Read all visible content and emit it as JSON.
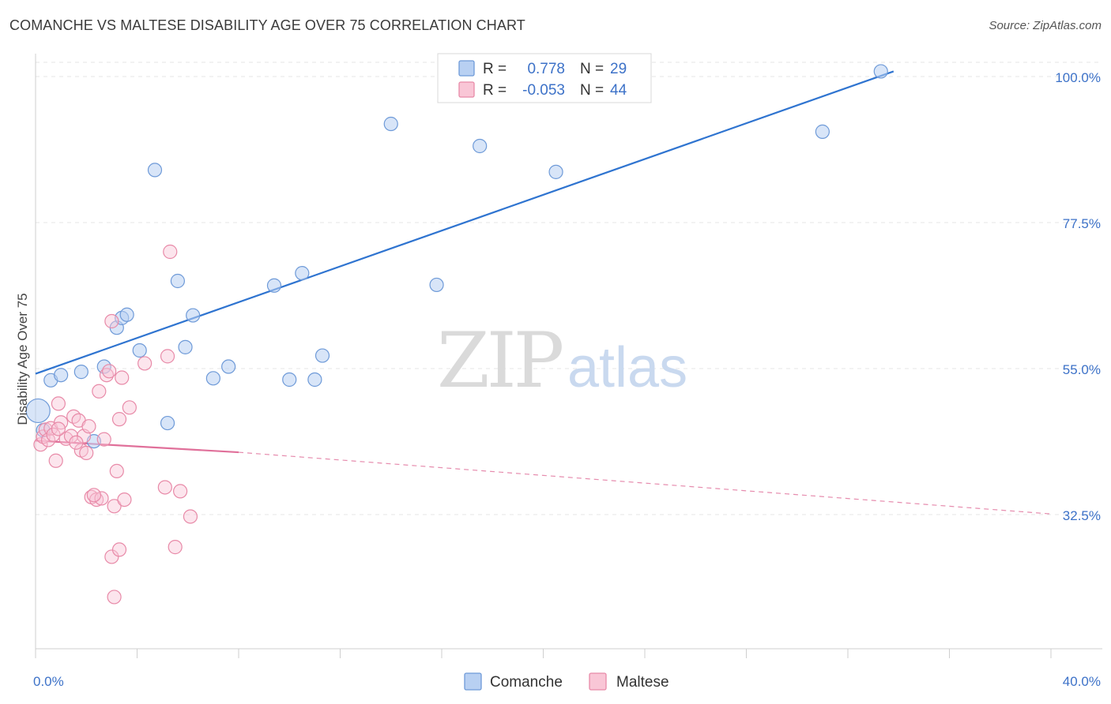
{
  "header": {
    "title": "COMANCHE VS MALTESE DISABILITY AGE OVER 75 CORRELATION CHART",
    "source": "Source: ZipAtlas.com"
  },
  "legend": {
    "r_label": "R =",
    "n_label": "N =",
    "rows": [
      {
        "name": "Comanche",
        "r": "0.778",
        "n": "29",
        "fill": "#b8d0f2",
        "stroke": "#6e9ad8"
      },
      {
        "name": "Maltese",
        "r": "-0.053",
        "n": "44",
        "fill": "#f9c6d6",
        "stroke": "#e88aa8"
      }
    ]
  },
  "watermark": {
    "zip": "ZIP",
    "atlas": "atlas"
  },
  "colors": {
    "comanche_line": "#2f74d0",
    "maltese_line": "#e0709a",
    "grid": "#e4e4e4",
    "tick_text": "#3d72c8"
  },
  "chart_data": {
    "type": "scatter",
    "title": "COMANCHE VS MALTESE DISABILITY AGE OVER 75 CORRELATION CHART",
    "xlabel": "",
    "ylabel": "Disability Age Over 75",
    "xlim": [
      0,
      40
    ],
    "ylim": [
      10,
      101
    ],
    "x_tick_labels": [
      "0.0%",
      "40.0%"
    ],
    "y_ticks": [
      32.5,
      55.0,
      77.5,
      100.0
    ],
    "y_tick_labels": [
      "32.5%",
      "55.0%",
      "77.5%",
      "100.0%"
    ],
    "series": [
      {
        "name": "Comanche",
        "r": 0.778,
        "n": 29,
        "points": [
          [
            0.1,
            48.5
          ],
          [
            0.6,
            53.2
          ],
          [
            1.0,
            54.0
          ],
          [
            1.8,
            54.5
          ],
          [
            2.7,
            55.3
          ],
          [
            3.2,
            61.3
          ],
          [
            3.4,
            62.8
          ],
          [
            3.6,
            63.3
          ],
          [
            4.1,
            57.8
          ],
          [
            4.7,
            85.6
          ],
          [
            5.2,
            46.6
          ],
          [
            5.6,
            68.5
          ],
          [
            5.9,
            58.3
          ],
          [
            6.2,
            63.2
          ],
          [
            7.0,
            53.5
          ],
          [
            7.6,
            55.3
          ],
          [
            9.4,
            67.8
          ],
          [
            10.0,
            53.3
          ],
          [
            10.5,
            69.7
          ],
          [
            11.0,
            53.3
          ],
          [
            11.3,
            57.0
          ],
          [
            14.0,
            92.7
          ],
          [
            15.8,
            67.9
          ],
          [
            17.5,
            89.3
          ],
          [
            20.5,
            85.3
          ],
          [
            31.0,
            91.5
          ],
          [
            33.3,
            100.8
          ],
          [
            0.3,
            45.5
          ],
          [
            2.3,
            43.8
          ]
        ],
        "trend": {
          "x": [
            0.0,
            33.8
          ],
          "y": [
            54.2,
            100.8
          ],
          "style": "solid"
        }
      },
      {
        "name": "Maltese",
        "r": -0.053,
        "n": 44,
        "points": [
          [
            0.2,
            43.3
          ],
          [
            0.3,
            44.5
          ],
          [
            0.4,
            45.6
          ],
          [
            0.5,
            44.0
          ],
          [
            0.6,
            45.8
          ],
          [
            0.7,
            44.8
          ],
          [
            0.8,
            40.8
          ],
          [
            0.9,
            49.6
          ],
          [
            1.0,
            46.7
          ],
          [
            1.2,
            44.2
          ],
          [
            1.4,
            44.6
          ],
          [
            1.5,
            47.6
          ],
          [
            1.7,
            47.0
          ],
          [
            1.8,
            42.4
          ],
          [
            1.9,
            44.6
          ],
          [
            2.0,
            42.0
          ],
          [
            2.1,
            46.1
          ],
          [
            2.2,
            35.2
          ],
          [
            2.4,
            34.8
          ],
          [
            2.5,
            51.5
          ],
          [
            2.6,
            35.0
          ],
          [
            2.7,
            44.1
          ],
          [
            2.8,
            54.0
          ],
          [
            2.9,
            54.6
          ],
          [
            3.0,
            62.3
          ],
          [
            3.1,
            33.8
          ],
          [
            3.2,
            39.2
          ],
          [
            3.3,
            47.2
          ],
          [
            3.4,
            53.6
          ],
          [
            3.5,
            34.8
          ],
          [
            3.7,
            49.0
          ],
          [
            4.3,
            55.8
          ],
          [
            5.1,
            36.7
          ],
          [
            5.2,
            56.9
          ],
          [
            5.3,
            73.0
          ],
          [
            5.7,
            36.1
          ],
          [
            6.1,
            32.2
          ],
          [
            5.5,
            27.5
          ],
          [
            3.0,
            26.0
          ],
          [
            3.1,
            19.8
          ],
          [
            3.3,
            27.1
          ],
          [
            2.3,
            35.5
          ],
          [
            0.9,
            45.7
          ],
          [
            1.6,
            43.6
          ]
        ],
        "trend": {
          "x": [
            0.0,
            8.0,
            40.0
          ],
          "y": [
            43.9,
            42.1,
            32.6
          ],
          "style": "solid-then-dashed"
        }
      }
    ]
  },
  "bottom_legend": [
    "Comanche",
    "Maltese"
  ]
}
